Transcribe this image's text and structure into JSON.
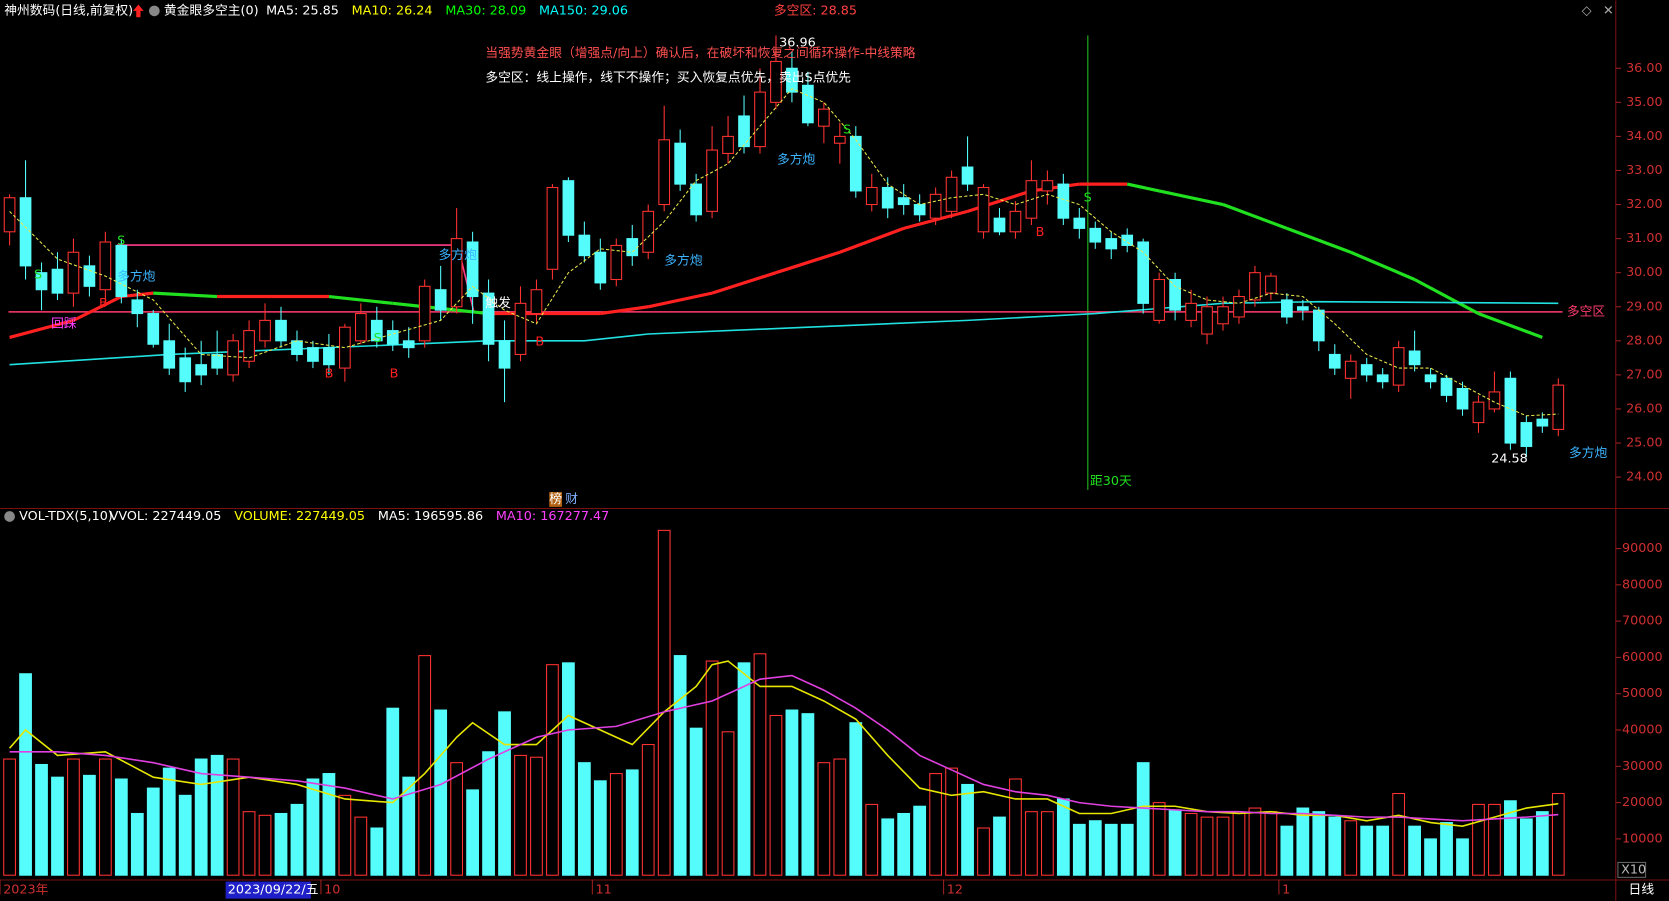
{
  "chart_data": [
    {
      "type": "candlestick",
      "title": "神州数码(日线,前复权)",
      "indicator": "黄金眼多空主(0)",
      "legend": [
        {
          "label": "MA5: 25.85",
          "color": "#ffffff"
        },
        {
          "label": "MA10: 26.24",
          "color": "#ffff00"
        },
        {
          "label": "MA30: 28.09",
          "color": "#00ff00"
        },
        {
          "label": "MA150: 29.06",
          "color": "#00ffff"
        }
      ],
      "zone_text": "多空区: 28.85",
      "notes": [
        "当强势黄金眼（增强点/向上）确认后，在破坏和恢复之间循环操作-中线策略",
        "多空区：线上操作，线下不操作；买入恢复点优先，卖出S点优先"
      ],
      "up_color": "#ff3232",
      "down_color": "#54fcfc",
      "open": [
        31.2,
        32.2,
        30.0,
        30.1,
        29.4,
        30.2,
        29.5,
        30.8,
        29.2,
        28.8,
        28.0,
        27.5,
        27.3,
        27.6,
        27.0,
        27.4,
        28.0,
        28.6,
        28.0,
        27.8,
        27.8,
        27.2,
        28.0,
        28.6,
        28.3,
        28.0,
        28.0,
        29.5,
        29.0,
        30.9,
        29.4,
        28.0,
        27.6,
        28.8,
        30.1,
        32.7,
        31.1,
        30.6,
        29.8,
        31.0,
        30.6,
        32.0,
        33.8,
        32.6,
        31.8,
        33.5,
        34.6,
        33.7,
        35.0,
        36.0,
        35.5,
        34.3,
        33.8,
        34.0,
        32.0,
        32.5,
        32.2,
        32.0,
        31.6,
        31.8,
        33.1,
        31.2,
        31.6,
        31.2,
        31.6,
        32.4,
        32.6,
        31.6,
        31.3,
        31.0,
        31.1,
        30.9,
        28.6,
        29.8,
        28.6,
        28.2,
        28.5,
        28.7,
        29.2,
        29.4,
        29.2,
        29.0,
        28.9,
        27.6,
        26.9,
        27.3,
        27.0,
        26.7,
        27.7,
        27.0,
        26.9,
        26.6,
        25.6,
        26.0,
        26.9,
        25.6,
        25.7,
        25.4
      ],
      "high": [
        32.3,
        33.3,
        30.3,
        30.6,
        31.0,
        30.5,
        31.2,
        31.0,
        29.5,
        28.9,
        28.5,
        27.8,
        28.0,
        28.3,
        28.2,
        28.6,
        29.1,
        29.0,
        28.3,
        28.0,
        28.2,
        28.5,
        29.1,
        29.0,
        28.6,
        28.4,
        29.8,
        30.2,
        31.9,
        31.2,
        29.8,
        28.6,
        29.6,
        29.8,
        32.6,
        32.8,
        31.5,
        31.0,
        31.0,
        31.4,
        32.0,
        34.9,
        34.2,
        32.9,
        34.3,
        34.6,
        35.2,
        36.0,
        36.96,
        36.5,
        35.9,
        35.0,
        34.4,
        34.3,
        32.9,
        32.8,
        32.6,
        32.3,
        32.5,
        33.0,
        34.0,
        32.6,
        31.9,
        32.1,
        33.3,
        33.0,
        32.9,
        31.9,
        31.5,
        31.2,
        31.3,
        31.0,
        30.0,
        30.0,
        29.5,
        29.3,
        29.3,
        29.5,
        30.2,
        30.0,
        29.4,
        29.2,
        29.0,
        27.9,
        27.6,
        27.5,
        27.2,
        28.0,
        28.3,
        27.2,
        27.0,
        26.8,
        26.4,
        27.1,
        27.1,
        25.8,
        25.9,
        26.9
      ],
      "low": [
        30.8,
        29.8,
        28.9,
        29.2,
        29.0,
        29.3,
        29.1,
        29.1,
        28.4,
        27.8,
        27.0,
        26.5,
        26.7,
        27.0,
        26.8,
        27.2,
        27.8,
        27.8,
        27.4,
        27.2,
        27.0,
        26.8,
        27.9,
        27.8,
        27.7,
        27.5,
        27.8,
        28.6,
        28.8,
        28.5,
        27.4,
        26.2,
        27.4,
        28.5,
        29.8,
        30.9,
        30.3,
        29.5,
        29.6,
        30.2,
        30.4,
        31.8,
        32.4,
        31.5,
        31.6,
        33.2,
        33.5,
        33.5,
        34.8,
        35.0,
        34.3,
        33.8,
        33.2,
        32.2,
        31.8,
        31.6,
        31.7,
        31.5,
        31.4,
        31.6,
        32.4,
        31.0,
        31.1,
        31.0,
        31.4,
        32.0,
        31.4,
        31.0,
        30.7,
        30.4,
        30.6,
        28.8,
        28.5,
        28.6,
        28.4,
        27.9,
        28.3,
        28.5,
        29.0,
        29.2,
        28.5,
        28.6,
        27.7,
        27.0,
        26.3,
        26.8,
        26.6,
        26.5,
        27.1,
        26.6,
        26.2,
        25.8,
        25.3,
        25.9,
        24.8,
        24.58,
        25.3,
        25.2
      ],
      "close": [
        32.2,
        30.2,
        29.5,
        29.4,
        30.6,
        29.6,
        30.9,
        29.3,
        28.8,
        27.9,
        27.2,
        26.8,
        27.0,
        27.2,
        28.0,
        28.3,
        28.6,
        28.0,
        27.6,
        27.4,
        27.3,
        28.4,
        28.8,
        28.0,
        27.9,
        27.8,
        29.6,
        28.9,
        31.0,
        29.3,
        27.9,
        27.2,
        29.1,
        29.5,
        32.5,
        31.1,
        30.5,
        29.7,
        30.8,
        30.5,
        31.8,
        33.9,
        32.6,
        31.7,
        33.6,
        34.0,
        33.7,
        35.3,
        36.2,
        35.3,
        34.4,
        34.8,
        34.0,
        32.4,
        32.5,
        31.9,
        32.0,
        31.7,
        32.3,
        32.8,
        32.6,
        32.5,
        31.2,
        31.8,
        32.7,
        32.7,
        31.6,
        31.3,
        30.9,
        30.7,
        30.8,
        29.1,
        29.8,
        28.9,
        29.1,
        29.0,
        29.0,
        29.3,
        30.0,
        29.9,
        28.7,
        28.9,
        28.0,
        27.2,
        27.4,
        27.0,
        26.8,
        27.8,
        27.3,
        26.8,
        26.4,
        26.0,
        26.2,
        26.5,
        25.0,
        24.9,
        25.5,
        26.7
      ],
      "ylim": [
        23.125,
        37.84
      ],
      "yticks": [
        {
          "value": 24,
          "label": "24.00"
        },
        {
          "value": 25,
          "label": "25.00"
        },
        {
          "value": 26,
          "label": "26.00"
        },
        {
          "value": 27,
          "label": "27.00"
        },
        {
          "value": 28,
          "label": "28.00"
        },
        {
          "value": 29,
          "label": "29.00"
        },
        {
          "value": 30,
          "label": "30.00"
        },
        {
          "value": 31,
          "label": "31.00"
        },
        {
          "value": 32,
          "label": "32.00"
        },
        {
          "value": 33,
          "label": "33.00"
        },
        {
          "value": 34,
          "label": "34.00"
        },
        {
          "value": 35,
          "label": "35.00"
        },
        {
          "value": 36,
          "label": "36.00"
        }
      ],
      "zone": {
        "value": 28.85,
        "label": "多空区",
        "color": "#ff3c6e"
      },
      "series": [
        {
          "name": "MA5",
          "color": "#e6e64a",
          "dashed": true,
          "x": [
            0,
            3,
            6,
            9,
            12,
            15,
            18,
            21,
            24,
            27,
            29,
            31,
            33,
            35,
            37,
            39,
            41,
            43,
            45,
            47,
            49,
            51,
            53,
            55,
            57,
            59,
            61,
            63,
            65,
            67,
            69,
            71,
            73,
            75,
            77,
            79,
            81,
            83,
            85,
            87,
            89,
            91,
            93,
            95,
            97
          ],
          "values": [
            31.8,
            30.4,
            29.9,
            29.2,
            27.6,
            27.5,
            28.0,
            27.8,
            28.2,
            28.6,
            29.6,
            28.9,
            28.5,
            30.0,
            30.7,
            30.6,
            31.5,
            32.7,
            33.2,
            34.3,
            35.4,
            35.0,
            33.9,
            32.6,
            32.0,
            32.2,
            32.3,
            32.0,
            32.3,
            32.0,
            31.2,
            30.6,
            29.6,
            29.2,
            29.1,
            29.4,
            29.3,
            28.5,
            27.6,
            27.2,
            27.2,
            26.7,
            26.2,
            25.8,
            25.85
          ]
        },
        {
          "name": "MA30",
          "up_color": "#ff2020",
          "down_color": "#20e020",
          "x": [
            0,
            4,
            7,
            9,
            13,
            20,
            24,
            26,
            30,
            33,
            37,
            40,
            44,
            48,
            52,
            56,
            60,
            64,
            67,
            70,
            72,
            76,
            80,
            84,
            88,
            92,
            96
          ],
          "values": [
            28.1,
            28.6,
            29.3,
            29.4,
            29.3,
            29.3,
            29.1,
            29.0,
            28.8,
            28.8,
            28.8,
            29.0,
            29.4,
            30.0,
            30.6,
            31.3,
            31.8,
            32.4,
            32.6,
            32.6,
            32.4,
            32.0,
            31.3,
            30.6,
            29.8,
            28.8,
            28.1
          ]
        },
        {
          "name": "MA150",
          "color": "#20e0e0",
          "x": [
            0,
            10,
            20,
            30,
            36,
            40,
            50,
            60,
            68,
            76,
            82,
            97
          ],
          "values": [
            27.3,
            27.6,
            27.8,
            28.0,
            28.0,
            28.2,
            28.4,
            28.6,
            28.8,
            29.1,
            29.15,
            29.1
          ]
        }
      ],
      "markers": [
        {
          "text": "S",
          "color": "#20e020"
        },
        {
          "text": "S",
          "color": "#20e020"
        },
        {
          "text": "B",
          "color": "#ff2020"
        },
        {
          "text": "多方炮",
          "color": "#3cb4ff"
        },
        {
          "text": "回踩",
          "color": "#ff40ff"
        },
        {
          "text": "S",
          "color": "#20e020"
        },
        {
          "text": "B",
          "color": "#ff2020"
        },
        {
          "text": "B",
          "color": "#ff2020"
        },
        {
          "text": "多方炮",
          "color": "#3cb4ff"
        },
        {
          "text": "触发",
          "color": "#ffffff"
        },
        {
          "text": "B",
          "color": "#ff2020"
        },
        {
          "text": "多方炮",
          "color": "#3cb4ff"
        },
        {
          "text": "S",
          "color": "#20e020"
        },
        {
          "text": "多方炮",
          "color": "#3cb4ff"
        },
        {
          "text": "B",
          "color": "#ff2020"
        },
        {
          "text": "S",
          "color": "#20e020"
        },
        {
          "text": "多方炮",
          "color": "#3cb4ff"
        }
      ],
      "high_label": "36.96",
      "low_label": "24.58",
      "vline_label": "距30天",
      "badges": [
        "榜",
        "财"
      ]
    },
    {
      "type": "bar",
      "title": "VOL-TDX(5,10)",
      "legend": [
        {
          "label": "VVOL: 227449.05",
          "color": "#ffffff"
        },
        {
          "label": "VOLUME: 227449.05",
          "color": "#ffff00"
        },
        {
          "label": "MA5: 196595.86",
          "color": "#ffffff"
        },
        {
          "label": "MA10: 167277.47",
          "color": "#ff40ff"
        }
      ],
      "values": [
        32000,
        55500,
        30500,
        27000,
        32000,
        27500,
        32000,
        26500,
        17000,
        24000,
        29500,
        22000,
        32000,
        33000,
        32000,
        17500,
        16500,
        17000,
        19500,
        26500,
        28000,
        22000,
        16000,
        13000,
        46000,
        27000,
        60500,
        45500,
        31000,
        23500,
        34000,
        45000,
        33000,
        32500,
        58000,
        58500,
        31000,
        26000,
        28000,
        29000,
        36000,
        95000,
        60500,
        40500,
        59000,
        39500,
        58500,
        61000,
        44000,
        45500,
        44500,
        31000,
        32000,
        42000,
        19500,
        15500,
        17000,
        19000,
        28000,
        29500,
        25000,
        13000,
        16000,
        26500,
        17500,
        17500,
        21000,
        14000,
        15000,
        14000,
        14000,
        31000,
        20000,
        18000,
        17000,
        16000,
        16000,
        17000,
        18500,
        17500,
        13500,
        18500,
        17500,
        16000,
        15000,
        13500,
        13500,
        22500,
        13500,
        10000,
        14500,
        10000,
        19500,
        19500,
        20500,
        15500,
        17500,
        22500
      ],
      "ylim": [
        0,
        100880
      ],
      "yticks": [
        10000,
        20000,
        30000,
        40000,
        50000,
        60000,
        70000,
        80000,
        90000
      ],
      "series": [
        {
          "name": "MA5",
          "color": "#e6e600",
          "x": [
            0,
            1,
            3,
            6,
            9,
            12,
            15,
            18,
            21,
            24,
            26,
            28,
            29,
            31,
            33,
            35,
            37,
            39,
            41,
            43,
            44,
            45,
            47,
            49,
            51,
            53,
            55,
            57,
            59,
            61,
            63,
            65,
            67,
            69,
            71,
            73,
            75,
            77,
            79,
            81,
            83,
            85,
            87,
            89,
            91,
            93,
            95,
            97
          ],
          "values": [
            35000,
            40000,
            33000,
            34000,
            27000,
            25000,
            27000,
            25000,
            21000,
            20000,
            28000,
            38000,
            42000,
            36000,
            36000,
            44000,
            40000,
            36000,
            45000,
            52000,
            58000,
            59000,
            52000,
            52000,
            48000,
            43000,
            33000,
            24000,
            22000,
            23000,
            21000,
            21000,
            17000,
            17000,
            19000,
            19000,
            17500,
            17000,
            17500,
            16500,
            16500,
            15000,
            16500,
            14500,
            13500,
            16000,
            18500,
            19700
          ]
        },
        {
          "name": "MA10",
          "color": "#e040e0",
          "x": [
            0,
            3,
            6,
            9,
            12,
            15,
            18,
            21,
            24,
            27,
            30,
            33,
            35,
            38,
            41,
            44,
            47,
            49,
            51,
            53,
            55,
            57,
            59,
            61,
            63,
            65,
            67,
            69,
            71,
            73,
            75,
            77,
            79,
            81,
            83,
            85,
            87,
            89,
            91,
            93,
            95,
            97
          ],
          "values": [
            34000,
            34000,
            33000,
            31000,
            28000,
            27000,
            26000,
            24000,
            21000,
            25000,
            32000,
            38000,
            40000,
            41000,
            45000,
            48000,
            54000,
            55000,
            51000,
            46000,
            40000,
            33000,
            29000,
            25000,
            23000,
            22000,
            20000,
            19000,
            18500,
            18000,
            17500,
            17500,
            17000,
            17000,
            16500,
            16000,
            16000,
            15500,
            15000,
            15500,
            16000,
            16700
          ]
        }
      ],
      "xticks": [
        {
          "value": 0,
          "label": "2023年"
        },
        {
          "value": 19.5,
          "label": "10"
        },
        {
          "value": 36.5,
          "label": "11"
        },
        {
          "value": 58.5,
          "label": "12"
        },
        {
          "value": 79.5,
          "label": "1"
        }
      ],
      "cursor_label": "2023/09/22/五",
      "scale_label": "X10",
      "period_label": "日线"
    }
  ]
}
